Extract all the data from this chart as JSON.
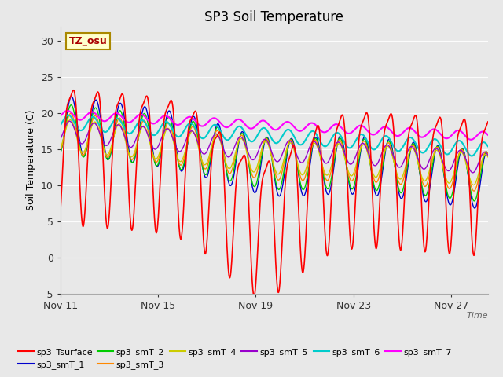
{
  "title": "SP3 Soil Temperature",
  "ylabel": "Soil Temperature (C)",
  "xlabel": "Time",
  "ylim": [
    -5,
    32
  ],
  "xlim": [
    0,
    17.5
  ],
  "x_tick_labels": [
    "Nov 11",
    "Nov 15",
    "Nov 19",
    "Nov 23",
    "Nov 27"
  ],
  "x_tick_positions": [
    0,
    4,
    8,
    12,
    16
  ],
  "yticks": [
    -5,
    0,
    5,
    10,
    15,
    20,
    25,
    30
  ],
  "fig_bg_color": "#e8e8e8",
  "plot_bg_color": "#e8e8e8",
  "series_colors": {
    "sp3_Tsurface": "#ff0000",
    "sp3_smT_1": "#0000cc",
    "sp3_smT_2": "#00cc00",
    "sp3_smT_3": "#ff8800",
    "sp3_smT_4": "#cccc00",
    "sp3_smT_5": "#9900cc",
    "sp3_smT_6": "#00cccc",
    "sp3_smT_7": "#ff00ff"
  },
  "annotation_text": "TZ_osu",
  "annotation_color": "#aa0000",
  "annotation_bg": "#ffffcc",
  "annotation_border": "#aa8800",
  "legend_ncol_row1": 6,
  "legend_ncol_row2": 2,
  "grid_color": "#ffffff",
  "grid_alpha": 0.9,
  "figsize": [
    6.4,
    4.8
  ],
  "dpi": 100
}
